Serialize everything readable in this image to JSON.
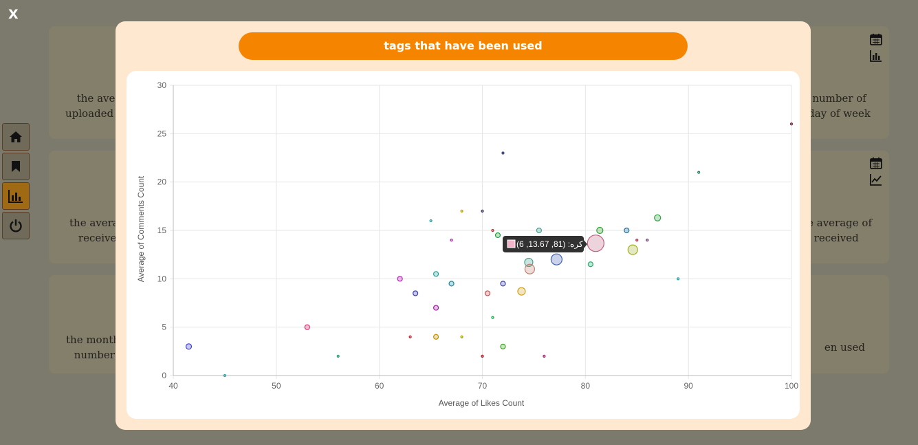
{
  "app": {
    "close_label": "X"
  },
  "side_nav": [
    {
      "name": "home",
      "icon": "home-icon",
      "active": false
    },
    {
      "name": "bookmark",
      "icon": "bookmark-icon",
      "active": false
    },
    {
      "name": "charts",
      "icon": "bar-chart-icon",
      "active": true
    },
    {
      "name": "logout",
      "icon": "power-icon",
      "active": false
    }
  ],
  "background_cards": {
    "left": [
      {
        "line1": "the ave",
        "line2": "uploaded m"
      },
      {
        "line1": "the averag",
        "line2": "receive"
      },
      {
        "line1": "the monthl",
        "line2": "number"
      }
    ],
    "right": [
      {
        "line1": "number of",
        "line2": "day of week"
      },
      {
        "line1": "ne average of",
        "line2": "received"
      },
      {
        "line1": "en used",
        "line2": ""
      }
    ]
  },
  "modal": {
    "title": "tags that have been used"
  },
  "tooltip": {
    "text": "(6 ,13.67 ,81) :کره",
    "swatch_color": "#f2b6c8"
  },
  "chart_data": {
    "type": "scatter",
    "title": "tags that have been used",
    "xlabel": "Average of Likes Count",
    "ylabel": "Average of Comments Count",
    "xlim": [
      40,
      100
    ],
    "ylim": [
      0,
      30
    ],
    "xticks": [
      40,
      50,
      60,
      70,
      80,
      90,
      100
    ],
    "yticks": [
      0,
      5,
      10,
      15,
      20,
      25,
      30
    ],
    "grid": true,
    "points": [
      {
        "x": 41.5,
        "y": 3,
        "r": 4,
        "color": "#3b3bd6"
      },
      {
        "x": 45,
        "y": 0,
        "r": 1.5,
        "color": "#2aa0a0"
      },
      {
        "x": 53,
        "y": 5,
        "r": 3.5,
        "color": "#d0306a"
      },
      {
        "x": 56,
        "y": 2,
        "r": 1.5,
        "color": "#2a9a6a"
      },
      {
        "x": 62,
        "y": 10,
        "r": 3.5,
        "color": "#b020b0"
      },
      {
        "x": 63,
        "y": 4,
        "r": 1.5,
        "color": "#b0202a"
      },
      {
        "x": 63.5,
        "y": 8.5,
        "r": 3.5,
        "color": "#3a3ab0"
      },
      {
        "x": 65,
        "y": 16,
        "r": 1.5,
        "color": "#20a0a0"
      },
      {
        "x": 65.5,
        "y": 10.5,
        "r": 3.5,
        "color": "#20a09a"
      },
      {
        "x": 65.5,
        "y": 7,
        "r": 3.5,
        "color": "#a020a0"
      },
      {
        "x": 65.5,
        "y": 4,
        "r": 3.5,
        "color": "#c09000"
      },
      {
        "x": 67,
        "y": 14,
        "r": 1.5,
        "color": "#a020a0"
      },
      {
        "x": 67,
        "y": 9.5,
        "r": 3.5,
        "color": "#1a8aa0"
      },
      {
        "x": 68,
        "y": 17,
        "r": 1.5,
        "color": "#c0a000"
      },
      {
        "x": 68,
        "y": 4,
        "r": 1.5,
        "color": "#a0a000"
      },
      {
        "x": 70,
        "y": 17,
        "r": 1.5,
        "color": "#303060"
      },
      {
        "x": 70,
        "y": 2,
        "r": 1.5,
        "color": "#b01020"
      },
      {
        "x": 70.5,
        "y": 8.5,
        "r": 3.5,
        "color": "#d05050"
      },
      {
        "x": 71,
        "y": 15,
        "r": 1.5,
        "color": "#c03030"
      },
      {
        "x": 71,
        "y": 6,
        "r": 1.5,
        "color": "#20a050"
      },
      {
        "x": 71.5,
        "y": 14.5,
        "r": 3.5,
        "color": "#20a040"
      },
      {
        "x": 72,
        "y": 23,
        "r": 1.5,
        "color": "#203080"
      },
      {
        "x": 72,
        "y": 9.5,
        "r": 3.5,
        "color": "#4040b0"
      },
      {
        "x": 72,
        "y": 3,
        "r": 3.5,
        "color": "#40a020"
      },
      {
        "x": 73.8,
        "y": 8.7,
        "r": 5.5,
        "color": "#d0a020"
      },
      {
        "x": 74.5,
        "y": 11.7,
        "r": 6,
        "color": "#40a090"
      },
      {
        "x": 74.6,
        "y": 11,
        "r": 7,
        "color": "#c08070"
      },
      {
        "x": 75.5,
        "y": 15,
        "r": 3.5,
        "color": "#40a090"
      },
      {
        "x": 76,
        "y": 2,
        "r": 1.5,
        "color": "#a02070"
      },
      {
        "x": 77.2,
        "y": 12,
        "r": 8,
        "color": "#4060b0"
      },
      {
        "x": 80.5,
        "y": 11.5,
        "r": 3.5,
        "color": "#20b070"
      },
      {
        "x": 81,
        "y": 13.67,
        "r": 12,
        "color": "#c06080"
      },
      {
        "x": 81.4,
        "y": 15,
        "r": 4.5,
        "color": "#30a030"
      },
      {
        "x": 84,
        "y": 15,
        "r": 3.5,
        "color": "#2070a0"
      },
      {
        "x": 84.6,
        "y": 13,
        "r": 7,
        "color": "#a0b020"
      },
      {
        "x": 85,
        "y": 14,
        "r": 1.5,
        "color": "#b02040"
      },
      {
        "x": 86,
        "y": 14,
        "r": 1.5,
        "color": "#603060"
      },
      {
        "x": 87,
        "y": 16.3,
        "r": 4.5,
        "color": "#30a040"
      },
      {
        "x": 89,
        "y": 10,
        "r": 1.5,
        "color": "#20a0a0"
      },
      {
        "x": 91,
        "y": 21,
        "r": 1.5,
        "color": "#208060"
      },
      {
        "x": 100,
        "y": 26,
        "r": 1.5,
        "color": "#802040"
      }
    ]
  }
}
